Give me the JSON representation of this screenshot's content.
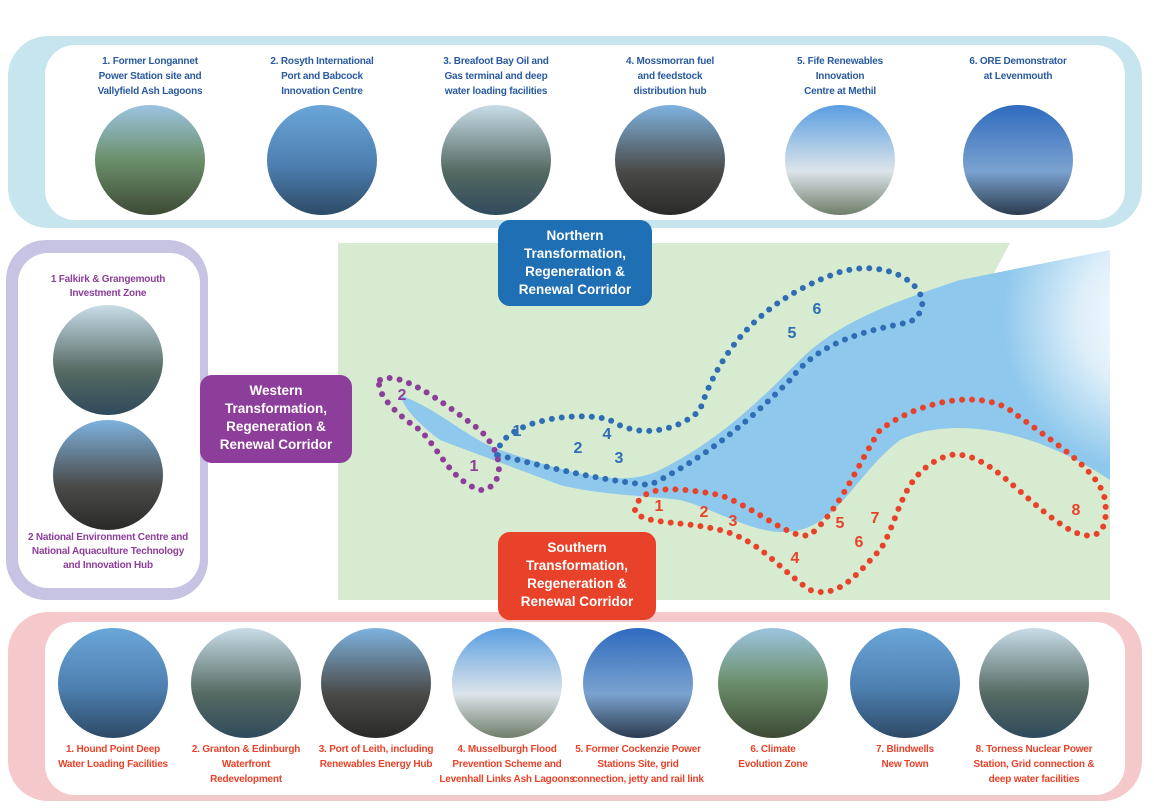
{
  "north": {
    "corridor": [
      "Northern",
      "Transformation,",
      "Regeneration &",
      "Renewal Corridor"
    ],
    "items": [
      {
        "lines": [
          "1. Former Longannet",
          "Power Station site and",
          "Vallyfield Ash Lagoons"
        ]
      },
      {
        "lines": [
          "2. Rosyth International",
          "Port and Babcock",
          "Innovation Centre"
        ]
      },
      {
        "lines": [
          "3. Breafoot Bay Oil and",
          "Gas terminal and deep",
          "water loading facilities"
        ]
      },
      {
        "lines": [
          "4. Mossmorran fuel",
          "and feedstock",
          "distribution hub"
        ]
      },
      {
        "lines": [
          "5. Fife Renewables",
          "Innovation",
          "Centre at Methil"
        ]
      },
      {
        "lines": [
          "6. ORE Demonstrator",
          "at Levenmouth"
        ]
      }
    ],
    "map_numbers": [
      "1",
      "2",
      "3",
      "4",
      "5",
      "6"
    ]
  },
  "west": {
    "corridor": [
      "Western",
      "Transformation,",
      "Regeneration &",
      "Renewal Corridor"
    ],
    "items": [
      {
        "lines": [
          "1 Falkirk & Grangemouth",
          "Investment Zone"
        ]
      },
      {
        "lines": [
          "2 National Environment Centre and",
          "National Aquaculture Technology",
          "and Innovation Hub"
        ]
      }
    ],
    "map_numbers": [
      "1",
      "2"
    ]
  },
  "south": {
    "corridor": [
      "Southern",
      "Transformation,",
      "Regeneration &",
      "Renewal Corridor"
    ],
    "items": [
      {
        "lines": [
          "1. Hound Point Deep",
          "Water Loading Facilities"
        ]
      },
      {
        "lines": [
          "2. Granton & Edinburgh",
          "Waterfront",
          "Redevelopment"
        ]
      },
      {
        "lines": [
          "3. Port of Leith, including",
          "Renewables Energy Hub"
        ]
      },
      {
        "lines": [
          "4. Musselburgh Flood",
          "Prevention Scheme and",
          "Levenhall Links Ash Lagoons"
        ]
      },
      {
        "lines": [
          "5. Former Cockenzie Power",
          "Stations Site, grid",
          "connection, jetty and rail link"
        ]
      },
      {
        "lines": [
          "6. Climate",
          "Evolution Zone"
        ]
      },
      {
        "lines": [
          "7. Blindwells",
          "New Town"
        ]
      },
      {
        "lines": [
          "8. Torness Nuclear Power",
          "Station, Grid connection &",
          "deep water facilities"
        ]
      }
    ],
    "map_numbers": [
      "1",
      "2",
      "3",
      "4",
      "5",
      "6",
      "7",
      "8"
    ]
  }
}
